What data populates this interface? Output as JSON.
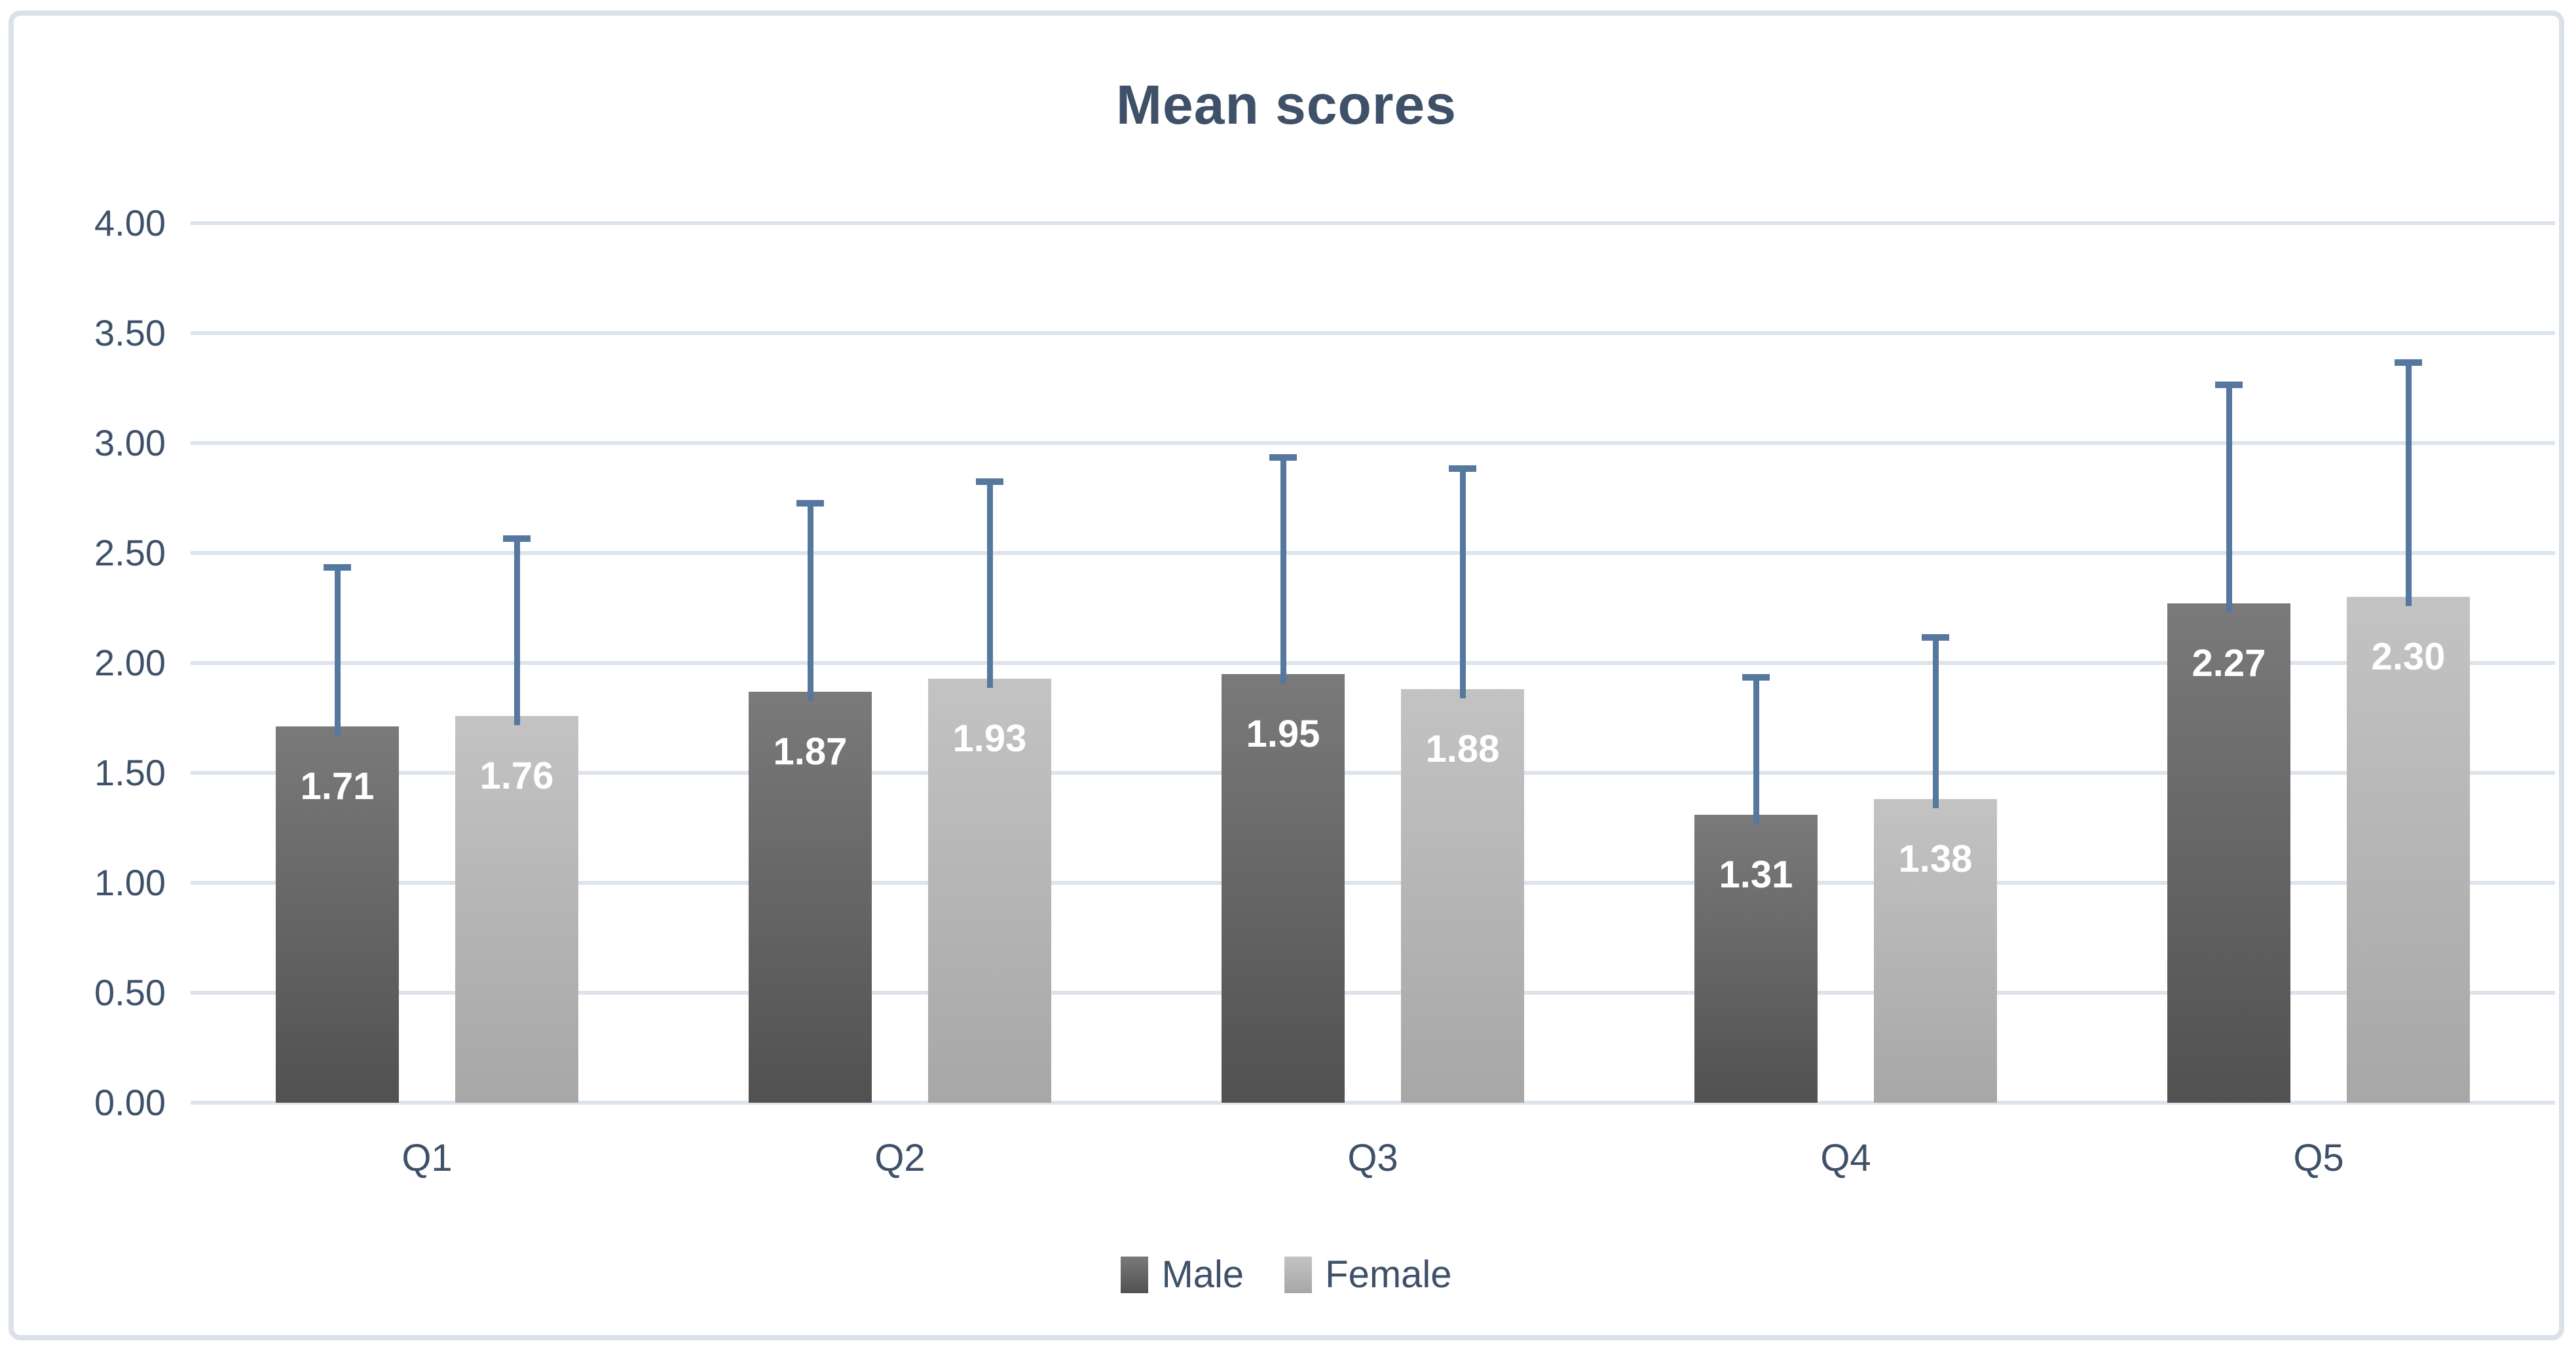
{
  "chart_data": {
    "type": "bar",
    "title": "Mean scores",
    "categories": [
      "Q1",
      "Q2",
      "Q3",
      "Q4",
      "Q5"
    ],
    "series": [
      {
        "name": "Male",
        "values": [
          1.71,
          1.87,
          1.95,
          1.31,
          2.27
        ],
        "error_top": [
          2.45,
          2.74,
          2.95,
          1.95,
          3.28
        ],
        "color_top": "#7a7a7a",
        "color_bottom": "#515151"
      },
      {
        "name": "Female",
        "values": [
          1.76,
          1.93,
          1.88,
          1.38,
          2.3
        ],
        "error_top": [
          2.58,
          2.84,
          2.9,
          2.13,
          3.38
        ],
        "color_top": "#c3c3c3",
        "color_bottom": "#a7a7a7"
      }
    ],
    "xlabel": "",
    "ylabel": "",
    "ylim": [
      0,
      4
    ],
    "y_tick_step": 0.5,
    "y_ticks": [
      "4.00",
      "3.50",
      "3.00",
      "2.50",
      "2.00",
      "1.50",
      "1.00",
      "0.50",
      "0.00"
    ],
    "grid": true,
    "legend_position": "bottom",
    "bar_label_decimals": 2,
    "colors": {
      "error_bar": "#56789e",
      "gridline": "#dee4ec",
      "axis_text": "#3e5168",
      "title_text": "#3e5168",
      "bar_label_text": "#ffffff",
      "chart_border": "#dce1e9",
      "background": "#ffffff"
    }
  }
}
